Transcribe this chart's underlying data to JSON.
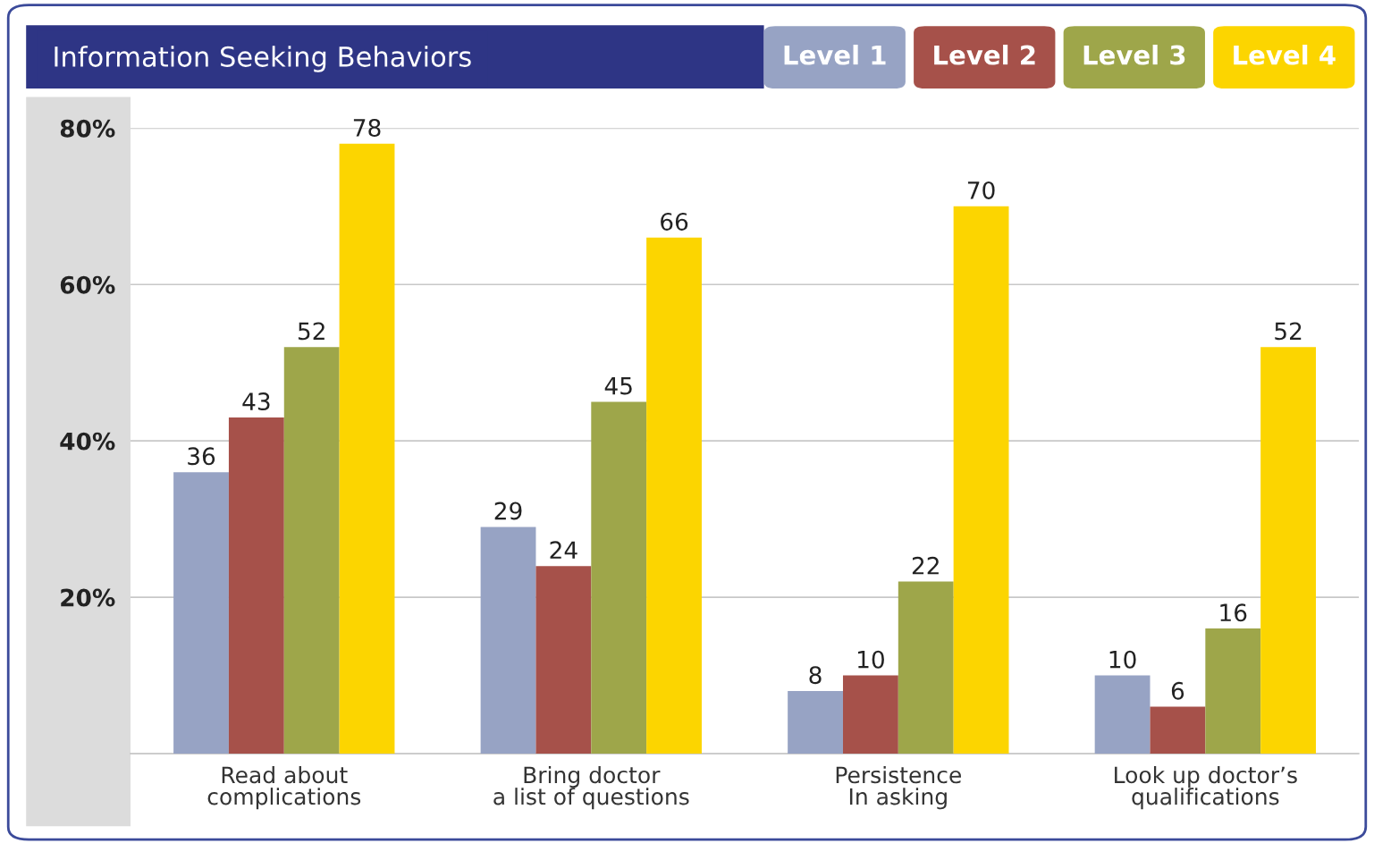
{
  "chart_data": {
    "type": "bar",
    "title": "Information Seeking Behaviors",
    "categories": [
      "Read about\ncomplications",
      "Bring doctor\na list of questions",
      "Persistence\nIn asking",
      "Look up doctor’s\nqualifications"
    ],
    "series": [
      {
        "name": "Level 1",
        "color": "#97a3c4",
        "values": [
          36,
          29,
          8,
          10
        ]
      },
      {
        "name": "Level 2",
        "color": "#a6514a",
        "values": [
          43,
          24,
          10,
          6
        ]
      },
      {
        "name": "Level 3",
        "color": "#9ea64a",
        "values": [
          52,
          45,
          22,
          16
        ]
      },
      {
        "name": "Level 4",
        "color": "#fcd500",
        "values": [
          78,
          66,
          70,
          52
        ]
      }
    ],
    "ylim": [
      0,
      80
    ],
    "yticks": [
      {
        "value": 20,
        "label": "20%"
      },
      {
        "value": 40,
        "label": "40%"
      },
      {
        "value": 60,
        "label": "60%"
      },
      {
        "value": 80,
        "label": "80%"
      }
    ],
    "grid": "y",
    "legend": "top right",
    "data_labels": true
  }
}
